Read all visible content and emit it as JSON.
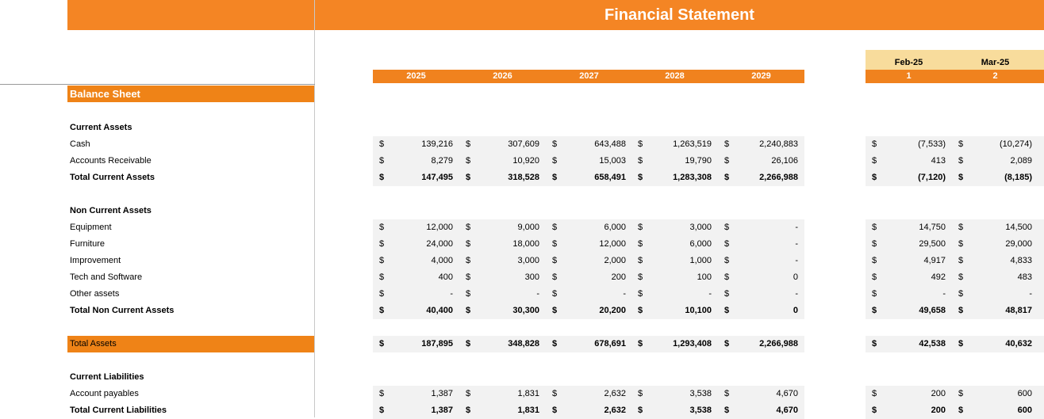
{
  "title": "Financial Statement",
  "years": [
    "2025",
    "2026",
    "2027",
    "2028",
    "2029"
  ],
  "months": [
    {
      "name": "Feb-25",
      "index": "1"
    },
    {
      "name": "Mar-25",
      "index": "2"
    }
  ],
  "balance_sheet_label": "Balance Sheet",
  "currency_symbol": "$",
  "sections": {
    "current_assets": "Current Assets",
    "non_current_assets": "Non Current Assets",
    "total_assets": "Total Assets",
    "current_liabilities": "Current Liabilities"
  },
  "rows": [
    {
      "label": "Cash",
      "bold": false,
      "years": [
        "139,216",
        "307,609",
        "643,488",
        "1,263,519",
        "2,240,883"
      ],
      "months": [
        "(7,533)",
        "(10,274)"
      ]
    },
    {
      "label": "Accounts Receivable",
      "bold": false,
      "years": [
        "8,279",
        "10,920",
        "15,003",
        "19,790",
        "26,106"
      ],
      "months": [
        "413",
        "2,089"
      ]
    },
    {
      "label": "Total Current Assets",
      "bold": true,
      "years": [
        "147,495",
        "318,528",
        "658,491",
        "1,283,308",
        "2,266,988"
      ],
      "months": [
        "(7,120)",
        "(8,185)"
      ]
    },
    {
      "label": "Equipment",
      "bold": false,
      "years": [
        "12,000",
        "9,000",
        "6,000",
        "3,000",
        "-"
      ],
      "months": [
        "14,750",
        "14,500"
      ]
    },
    {
      "label": "Furniture",
      "bold": false,
      "years": [
        "24,000",
        "18,000",
        "12,000",
        "6,000",
        "-"
      ],
      "months": [
        "29,500",
        "29,000"
      ]
    },
    {
      "label": "Improvement",
      "bold": false,
      "years": [
        "4,000",
        "3,000",
        "2,000",
        "1,000",
        "-"
      ],
      "months": [
        "4,917",
        "4,833"
      ]
    },
    {
      "label": "Tech and Software",
      "bold": false,
      "years": [
        "400",
        "300",
        "200",
        "100",
        "0"
      ],
      "months": [
        "492",
        "483"
      ]
    },
    {
      "label": "Other assets",
      "bold": false,
      "years": [
        "-",
        "-",
        "-",
        "-",
        "-"
      ],
      "months": [
        "-",
        "-"
      ]
    },
    {
      "label": "Total Non Current Assets",
      "bold": true,
      "years": [
        "40,400",
        "30,300",
        "20,200",
        "10,100",
        "0"
      ],
      "months": [
        "49,658",
        "48,817"
      ]
    },
    {
      "label": "Total Assets",
      "bold": true,
      "years": [
        "187,895",
        "348,828",
        "678,691",
        "1,293,408",
        "2,266,988"
      ],
      "months": [
        "42,538",
        "40,632"
      ]
    },
    {
      "label": "Account payables",
      "bold": false,
      "years": [
        "1,387",
        "1,831",
        "2,632",
        "3,538",
        "4,670"
      ],
      "months": [
        "200",
        "600"
      ]
    },
    {
      "label": "Total Current Liabilities",
      "bold": true,
      "years": [
        "1,387",
        "1,831",
        "2,632",
        "3,538",
        "4,670"
      ],
      "months": [
        "200",
        "600"
      ]
    }
  ]
}
